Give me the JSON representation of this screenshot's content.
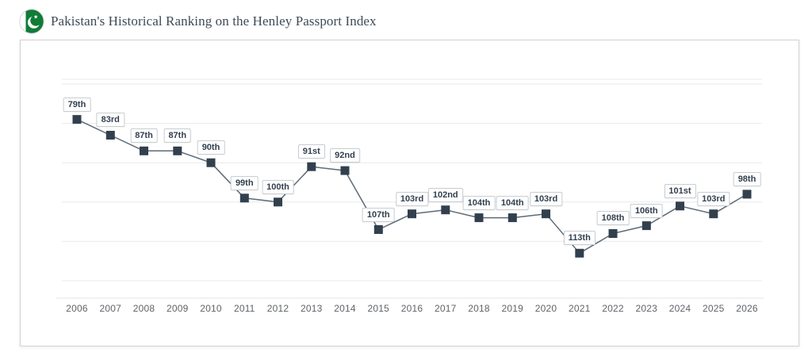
{
  "header": {
    "title": "Pakistan's Historical Ranking on the Henley Passport Index",
    "flag": {
      "country": "Pakistan",
      "green": "#0f7c37",
      "white": "#ffffff",
      "border": "#d8d8d8"
    }
  },
  "colors": {
    "marker": "#32404e",
    "trend_line": "#5d6a77",
    "point_label_text": "#32404e",
    "point_label_border": "#c9cdd1",
    "point_label_bg": "#ffffff",
    "gridline": "#e7e9eb",
    "axis_line": "#e0e3e6",
    "axis_label": "#5f6368",
    "title_text": "#3e4b57",
    "card_border": "#d2d2d2"
  },
  "chart_data": {
    "type": "line",
    "title": "Pakistan's Historical Ranking on the Henley Passport Index",
    "xlabel": "",
    "ylabel": "",
    "legend": "none",
    "grid": "horizontal",
    "marker_shape": "square",
    "y_axis": {
      "inverted": true,
      "min": 70,
      "max": 120,
      "grid_step": 10,
      "tick_labels_visible": false
    },
    "categories": [
      "2006",
      "2007",
      "2008",
      "2009",
      "2010",
      "2011",
      "2012",
      "2013",
      "2014",
      "2015",
      "2016",
      "2017",
      "2018",
      "2019",
      "2020",
      "2021",
      "2022",
      "2023",
      "2024",
      "2025",
      "2026"
    ],
    "values": [
      79,
      83,
      87,
      87,
      90,
      99,
      100,
      91,
      92,
      107,
      103,
      102,
      104,
      104,
      103,
      113,
      108,
      106,
      101,
      103,
      98
    ],
    "point_labels": [
      "79th",
      "83rd",
      "87th",
      "87th",
      "90th",
      "99th",
      "100th",
      "91st",
      "92nd",
      "107th",
      "103rd",
      "102nd",
      "104th",
      "104th",
      "103rd",
      "113th",
      "108th",
      "106th",
      "101st",
      "103rd",
      "98th"
    ]
  }
}
